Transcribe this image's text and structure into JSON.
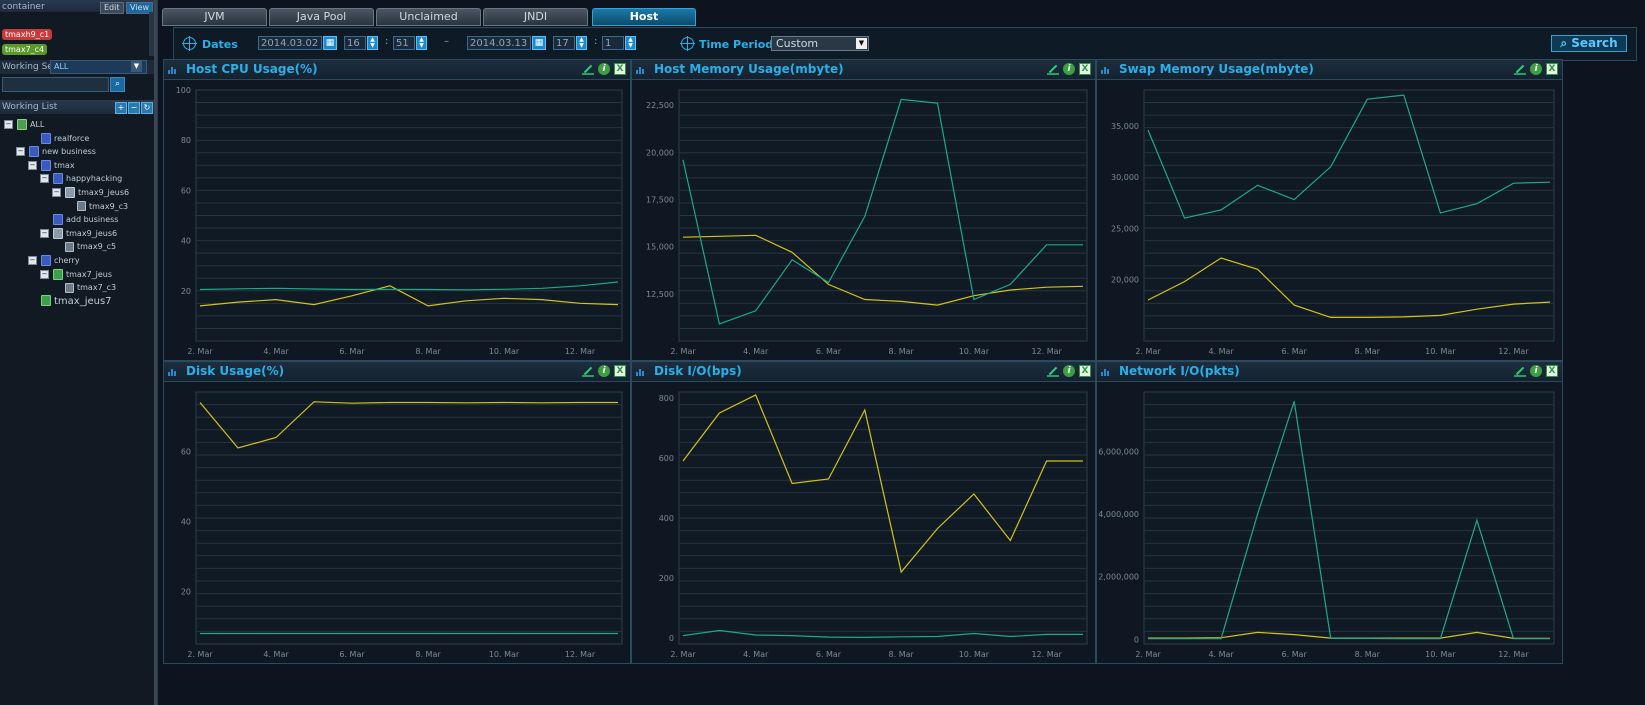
{
  "sidebar": {
    "container": {
      "title": "container",
      "edit_label": "Edit",
      "view_label": "View",
      "tags": [
        {
          "label": "tmaxh9_c1",
          "color": "#c83a3a"
        },
        {
          "label": "tmax7_c4",
          "color": "#5a9a2a"
        }
      ]
    },
    "working_set": {
      "label": "Working Set",
      "value": "ALL"
    },
    "working_list": {
      "label": "Working List"
    },
    "tree": [
      {
        "label": "ALL",
        "depth": 0,
        "toggle": "−",
        "icon": "root"
      },
      {
        "label": "realforce",
        "depth": 2,
        "toggle": "",
        "icon": "group"
      },
      {
        "label": "new business",
        "depth": 1,
        "toggle": "−",
        "icon": "group"
      },
      {
        "label": "tmax",
        "depth": 2,
        "toggle": "−",
        "icon": "group"
      },
      {
        "label": "happyhacking",
        "depth": 3,
        "toggle": "−",
        "icon": "group"
      },
      {
        "label": "tmax9_jeus6",
        "depth": 4,
        "toggle": "−",
        "icon": "server"
      },
      {
        "label": "tmax9_c3",
        "depth": 5,
        "toggle": "",
        "icon": "inst"
      },
      {
        "label": "add business",
        "depth": 3,
        "toggle": "",
        "icon": "group"
      },
      {
        "label": "tmax9_jeus6",
        "depth": 3,
        "toggle": "−",
        "icon": "server"
      },
      {
        "label": "tmax9_c5",
        "depth": 4,
        "toggle": "",
        "icon": "inst"
      },
      {
        "label": "cherry",
        "depth": 2,
        "toggle": "−",
        "icon": "group"
      },
      {
        "label": "tmax7_jeus",
        "depth": 3,
        "toggle": "−",
        "icon": "green"
      },
      {
        "label": "tmax7_c3",
        "depth": 4,
        "toggle": "",
        "icon": "inst"
      },
      {
        "label": "tmax_jeus7",
        "depth": 2,
        "toggle": "",
        "icon": "green"
      }
    ]
  },
  "tabs": [
    "JVM",
    "Java Pool",
    "Unclaimed",
    "JNDI",
    "Host"
  ],
  "active_tab": "Host",
  "filter": {
    "dates_label": "Dates",
    "start_date": "2014.03.02",
    "start_hour": "16",
    "start_min": "51",
    "dash": "–",
    "end_date": "2014.03.13",
    "end_hour": "17",
    "end_min": "1",
    "time_period_label": "Time Period",
    "time_period_value": "Custom",
    "search_label": "Search"
  },
  "colors": {
    "series_a": "#d4c21a",
    "series_b": "#1fa88a",
    "accent": "#29b0e8"
  },
  "chart_data": [
    {
      "type": "line",
      "title": "Host CPU Usage(%)",
      "x": [
        "2. Mar",
        "3. Mar",
        "4. Mar",
        "5. Mar",
        "6. Mar",
        "7. Mar",
        "8. Mar",
        "9. Mar",
        "10. Mar",
        "11. Mar",
        "12. Mar",
        "13. Mar"
      ],
      "xticks": [
        "2. Mar",
        "4. Mar",
        "6. Mar",
        "8. Mar",
        "10. Mar",
        "12. Mar"
      ],
      "ylim": [
        0,
        100
      ],
      "yticks": [
        20,
        40,
        60,
        80,
        100
      ],
      "ytick_labels": [
        "20",
        "40",
        "60",
        "80",
        "100"
      ],
      "series": [
        {
          "values": [
            14,
            15.5,
            16.5,
            14.5,
            18,
            22,
            14,
            16,
            17,
            16.5,
            15,
            14.5
          ],
          "color": "#d4c21a"
        },
        {
          "values": [
            20.5,
            20.8,
            21,
            20.7,
            20.5,
            20.6,
            20.5,
            20.4,
            20.6,
            21,
            22,
            23.5
          ],
          "color": "#1fa88a"
        }
      ]
    },
    {
      "type": "line",
      "title": "Host Memory Usage(mbyte)",
      "x": [
        "2. Mar",
        "3. Mar",
        "4. Mar",
        "5. Mar",
        "6. Mar",
        "7. Mar",
        "8. Mar",
        "9. Mar",
        "10. Mar",
        "11. Mar",
        "12. Mar",
        "13. Mar"
      ],
      "xticks": [
        "2. Mar",
        "4. Mar",
        "6. Mar",
        "8. Mar",
        "10. Mar",
        "12. Mar"
      ],
      "ylim": [
        10000,
        23300
      ],
      "yticks": [
        12500,
        15000,
        17500,
        20000,
        22500
      ],
      "ytick_labels": [
        "12,500",
        "15,000",
        "17,500",
        "20,000",
        "22,500"
      ],
      "series": [
        {
          "values": [
            15500,
            15550,
            15600,
            14700,
            13000,
            12200,
            12100,
            11900,
            12400,
            12700,
            12850,
            12900
          ],
          "color": "#d4c21a"
        },
        {
          "values": [
            19600,
            10900,
            11600,
            14300,
            13100,
            16600,
            22800,
            22600,
            12200,
            13000,
            15100,
            15100
          ],
          "color": "#1fa88a"
        }
      ]
    },
    {
      "type": "line",
      "title": "Swap Memory Usage(mbyte)",
      "x": [
        "2. Mar",
        "3. Mar",
        "4. Mar",
        "5. Mar",
        "6. Mar",
        "7. Mar",
        "8. Mar",
        "9. Mar",
        "10. Mar",
        "11. Mar",
        "12. Mar",
        "13. Mar"
      ],
      "xticks": [
        "2. Mar",
        "4. Mar",
        "6. Mar",
        "8. Mar",
        "10. Mar",
        "12. Mar"
      ],
      "ylim": [
        14000,
        38500
      ],
      "yticks": [
        20000,
        25000,
        30000,
        35000
      ],
      "ytick_labels": [
        "20,000",
        "25,000",
        "30,000",
        "35,000"
      ],
      "series": [
        {
          "values": [
            18000,
            19800,
            22100,
            21000,
            17500,
            16300,
            16300,
            16350,
            16500,
            17100,
            17600,
            17800
          ],
          "color": "#d4c21a"
        },
        {
          "values": [
            34600,
            26000,
            26800,
            29200,
            27800,
            31000,
            37600,
            38000,
            26500,
            27400,
            29400,
            29500
          ],
          "color": "#1fa88a"
        }
      ]
    },
    {
      "type": "line",
      "title": "Disk Usage(%)",
      "x": [
        "2. Mar",
        "3. Mar",
        "4. Mar",
        "5. Mar",
        "6. Mar",
        "7. Mar",
        "8. Mar",
        "9. Mar",
        "10. Mar",
        "11. Mar",
        "12. Mar",
        "13. Mar"
      ],
      "xticks": [
        "2. Mar",
        "4. Mar",
        "6. Mar",
        "8. Mar",
        "10. Mar",
        "12. Mar"
      ],
      "ylim": [
        5,
        77
      ],
      "yticks": [
        20,
        40,
        60
      ],
      "ytick_labels": [
        "20",
        "40",
        "60"
      ],
      "series": [
        {
          "values": [
            74,
            61,
            64,
            74.2,
            73.8,
            74,
            74,
            73.9,
            74,
            73.9,
            74,
            74
          ],
          "color": "#d4c21a"
        },
        {
          "values": [
            8,
            8,
            8,
            8,
            8,
            8,
            8,
            8,
            8,
            8,
            8,
            8
          ],
          "color": "#1fa88a"
        }
      ]
    },
    {
      "type": "line",
      "title": "Disk I/O(bps)",
      "x": [
        "2. Mar",
        "3. Mar",
        "4. Mar",
        "5. Mar",
        "6. Mar",
        "7. Mar",
        "8. Mar",
        "9. Mar",
        "10. Mar",
        "11. Mar",
        "12. Mar",
        "13. Mar"
      ],
      "xticks": [
        "2. Mar",
        "4. Mar",
        "6. Mar",
        "8. Mar",
        "10. Mar",
        "12. Mar"
      ],
      "ylim": [
        -20,
        820
      ],
      "yticks": [
        0,
        200,
        400,
        600,
        800
      ],
      "ytick_labels": [
        "0",
        "200",
        "400",
        "600",
        "800"
      ],
      "series": [
        {
          "values": [
            590,
            750,
            810,
            515,
            530,
            760,
            220,
            365,
            480,
            325,
            590,
            590
          ],
          "color": "#d4c21a"
        },
        {
          "values": [
            8,
            25,
            10,
            8,
            3,
            2,
            4,
            5,
            15,
            5,
            12,
            12
          ],
          "color": "#1fa88a"
        }
      ]
    },
    {
      "type": "line",
      "title": "Network I/O(pkts)",
      "x": [
        "2. Mar",
        "3. Mar",
        "4. Mar",
        "5. Mar",
        "6. Mar",
        "7. Mar",
        "8. Mar",
        "9. Mar",
        "10. Mar",
        "11. Mar",
        "12. Mar",
        "13. Mar"
      ],
      "xticks": [
        "2. Mar",
        "4. Mar",
        "6. Mar",
        "8. Mar",
        "10. Mar",
        "12. Mar"
      ],
      "ylim": [
        -150000,
        7900000
      ],
      "yticks": [
        0,
        2000000,
        4000000,
        6000000
      ],
      "ytick_labels": [
        "0",
        "2,000,000",
        "4,000,000",
        "6,000,000"
      ],
      "series": [
        {
          "values": [
            40000,
            40000,
            50000,
            220000,
            150000,
            40000,
            40000,
            40000,
            40000,
            220000,
            30000,
            30000
          ],
          "color": "#d4c21a"
        },
        {
          "values": [
            20000,
            20000,
            20000,
            4000000,
            7600000,
            30000,
            30000,
            20000,
            20000,
            3800000,
            20000,
            20000
          ],
          "color": "#1fa88a"
        }
      ]
    }
  ]
}
